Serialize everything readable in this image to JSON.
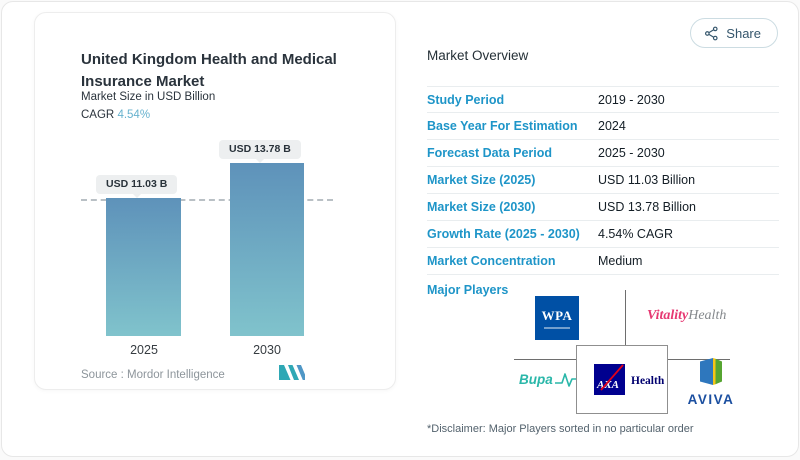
{
  "share_button": {
    "label": "Share"
  },
  "left_card": {
    "title": "United Kingdom Health and Medical Insurance Market",
    "subtitle": "Market Size in USD Billion",
    "cagr_label": "CAGR",
    "cagr_value": "4.54%",
    "source": "Source :  Mordor Intelligence"
  },
  "chart_data": {
    "type": "bar",
    "title": "United Kingdom Health and Medical Insurance Market",
    "ylabel": "Market Size in USD Billion",
    "categories": [
      "2025",
      "2030"
    ],
    "values": [
      11.03,
      13.78
    ],
    "bar_labels": [
      "USD 11.03 B",
      "USD 13.78 B"
    ],
    "ylim": [
      0,
      13.78
    ],
    "grid": "off",
    "annotations": [
      "dashed horizontal reference line at 11.03"
    ],
    "bar_gradient": [
      "#5e92ba",
      "#80c3cc"
    ]
  },
  "overview": {
    "heading": "Market Overview",
    "rows": [
      {
        "label": "Study Period",
        "value": "2019 - 2030"
      },
      {
        "label": "Base Year For Estimation",
        "value": "2024"
      },
      {
        "label": "Forecast Data Period",
        "value": "2025 - 2030"
      },
      {
        "label": "Market Size (2025)",
        "value": "USD 11.03 Billion"
      },
      {
        "label": "Market Size (2030)",
        "value": "USD 13.78 Billion"
      },
      {
        "label": "Growth Rate (2025 - 2030)",
        "value": "4.54% CAGR"
      },
      {
        "label": "Market Concentration",
        "value": "Medium"
      }
    ],
    "major_players_label": "Major Players",
    "players": {
      "wpa_text": "WPA",
      "vitality_text_1": "Vitality",
      "vitality_text_2": "Health",
      "bupa_text": "Bupa",
      "axa_text": "AXA",
      "axa_health_text": "Health",
      "aviva_text": "AVIVA"
    },
    "disclaimer": "*Disclaimer: Major Players sorted in no particular order"
  },
  "colors": {
    "accent_label_blue": "#1e95c8",
    "cagr_teal": "#67b2ce",
    "bar_top": "#5e92ba",
    "bar_bottom": "#80c3cc",
    "wpa_blue": "#0050a5",
    "vitality_pink": "#e63872",
    "bupa_teal": "#2ab7a9",
    "axa_blue": "#00008f",
    "aviva_blue": "#1b4fa0"
  }
}
